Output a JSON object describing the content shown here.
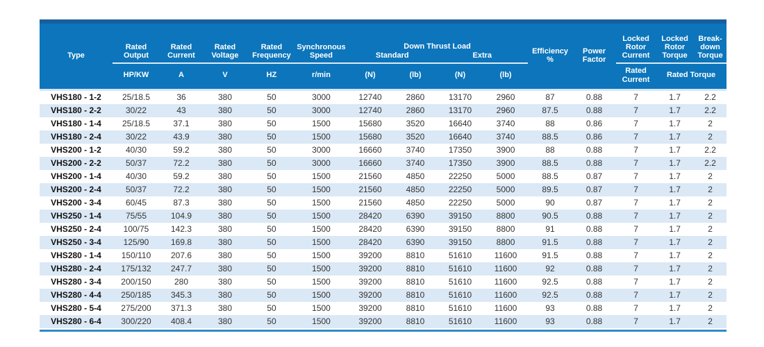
{
  "table": {
    "header": {
      "type": "Type",
      "rated_output": "Rated Output",
      "rated_current": "Rated Current",
      "rated_voltage": "Rated Voltage",
      "rated_frequency": "Rated Frequency",
      "synchronous_speed": "Synchronous Speed",
      "down_thrust_load": "Down Thrust Load",
      "standard": "Standard",
      "extra": "Extra",
      "efficiency": "Efficiency",
      "efficiency_unit": "%",
      "power_factor": "Power Factor",
      "locked_rotor_current": "Locked Rotor Current",
      "locked_rotor_torque": "Locked Rotor Torque",
      "breakdown_torque": "Break-down Torque",
      "units": {
        "output": "HP/KW",
        "current": "A",
        "voltage": "V",
        "frequency": "HZ",
        "speed": "r/min",
        "standard_n": "(N)",
        "standard_lb": "(lb)",
        "extra_n": "(N)",
        "extra_lb": "(lb)",
        "locked_rotor_current": "Rated Current",
        "rated_torque": "Rated Torque"
      }
    },
    "rows": [
      [
        "VHS180 - 1-2",
        "25/18.5",
        "36",
        "380",
        "50",
        "3000",
        "12740",
        "2860",
        "13170",
        "2960",
        "87",
        "0.88",
        "7",
        "1.7",
        "2.2"
      ],
      [
        "VHS180 - 2-2",
        "30/22",
        "43",
        "380",
        "50",
        "3000",
        "12740",
        "2860",
        "13170",
        "2960",
        "87.5",
        "0.88",
        "7",
        "1.7",
        "2.2"
      ],
      [
        "VHS180 - 1-4",
        "25/18.5",
        "37.1",
        "380",
        "50",
        "1500",
        "15680",
        "3520",
        "16640",
        "3740",
        "88",
        "0.86",
        "7",
        "1.7",
        "2"
      ],
      [
        "VHS180 - 2-4",
        "30/22",
        "43.9",
        "380",
        "50",
        "1500",
        "15680",
        "3520",
        "16640",
        "3740",
        "88.5",
        "0.86",
        "7",
        "1.7",
        "2"
      ],
      [
        "VHS200 - 1-2",
        "40/30",
        "59.2",
        "380",
        "50",
        "3000",
        "16660",
        "3740",
        "17350",
        "3900",
        "88",
        "0.88",
        "7",
        "1.7",
        "2.2"
      ],
      [
        "VHS200 - 2-2",
        "50/37",
        "72.2",
        "380",
        "50",
        "3000",
        "16660",
        "3740",
        "17350",
        "3900",
        "88.5",
        "0.88",
        "7",
        "1.7",
        "2.2"
      ],
      [
        "VHS200 - 1-4",
        "40/30",
        "59.2",
        "380",
        "50",
        "1500",
        "21560",
        "4850",
        "22250",
        "5000",
        "88.5",
        "0.87",
        "7",
        "1.7",
        "2"
      ],
      [
        "VHS200 - 2-4",
        "50/37",
        "72.2",
        "380",
        "50",
        "1500",
        "21560",
        "4850",
        "22250",
        "5000",
        "89.5",
        "0.87",
        "7",
        "1.7",
        "2"
      ],
      [
        "VHS200 - 3-4",
        "60/45",
        "87.3",
        "380",
        "50",
        "1500",
        "21560",
        "4850",
        "22250",
        "5000",
        "90",
        "0.87",
        "7",
        "1.7",
        "2"
      ],
      [
        "VHS250 - 1-4",
        "75/55",
        "104.9",
        "380",
        "50",
        "1500",
        "28420",
        "6390",
        "39150",
        "8800",
        "90.5",
        "0.88",
        "7",
        "1.7",
        "2"
      ],
      [
        "VHS250 - 2-4",
        "100/75",
        "142.3",
        "380",
        "50",
        "1500",
        "28420",
        "6390",
        "39150",
        "8800",
        "91",
        "0.88",
        "7",
        "1.7",
        "2"
      ],
      [
        "VHS250 - 3-4",
        "125/90",
        "169.8",
        "380",
        "50",
        "1500",
        "28420",
        "6390",
        "39150",
        "8800",
        "91.5",
        "0.88",
        "7",
        "1.7",
        "2"
      ],
      [
        "VHS280 - 1-4",
        "150/110",
        "207.6",
        "380",
        "50",
        "1500",
        "39200",
        "8810",
        "51610",
        "11600",
        "91.5",
        "0.88",
        "7",
        "1.7",
        "2"
      ],
      [
        "VHS280 - 2-4",
        "175/132",
        "247.7",
        "380",
        "50",
        "1500",
        "39200",
        "8810",
        "51610",
        "11600",
        "92",
        "0.88",
        "7",
        "1.7",
        "2"
      ],
      [
        "VHS280 - 3-4",
        "200/150",
        "280",
        "380",
        "50",
        "1500",
        "39200",
        "8810",
        "51610",
        "11600",
        "92.5",
        "0.88",
        "7",
        "1.7",
        "2"
      ],
      [
        "VHS280 - 4-4",
        "250/185",
        "345.3",
        "380",
        "50",
        "1500",
        "39200",
        "8810",
        "51610",
        "11600",
        "92.5",
        "0.88",
        "7",
        "1.7",
        "2"
      ],
      [
        "VHS280 - 5-4",
        "275/200",
        "371.3",
        "380",
        "50",
        "1500",
        "39200",
        "8810",
        "51610",
        "11600",
        "93",
        "0.88",
        "7",
        "1.7",
        "2"
      ],
      [
        "VHS280 - 6-4",
        "300/220",
        "408.4",
        "380",
        "50",
        "1500",
        "39200",
        "8810",
        "51610",
        "11600",
        "93",
        "0.88",
        "7",
        "1.7",
        "2"
      ]
    ],
    "colors": {
      "header_bg": "#0c75bb",
      "header_top_strip": "#175e9e",
      "row_stripe": "#dbe8f5",
      "bottom_rule": "#2e8ac9",
      "header_divider": "#dcebf8",
      "body_text": "#333333"
    }
  }
}
